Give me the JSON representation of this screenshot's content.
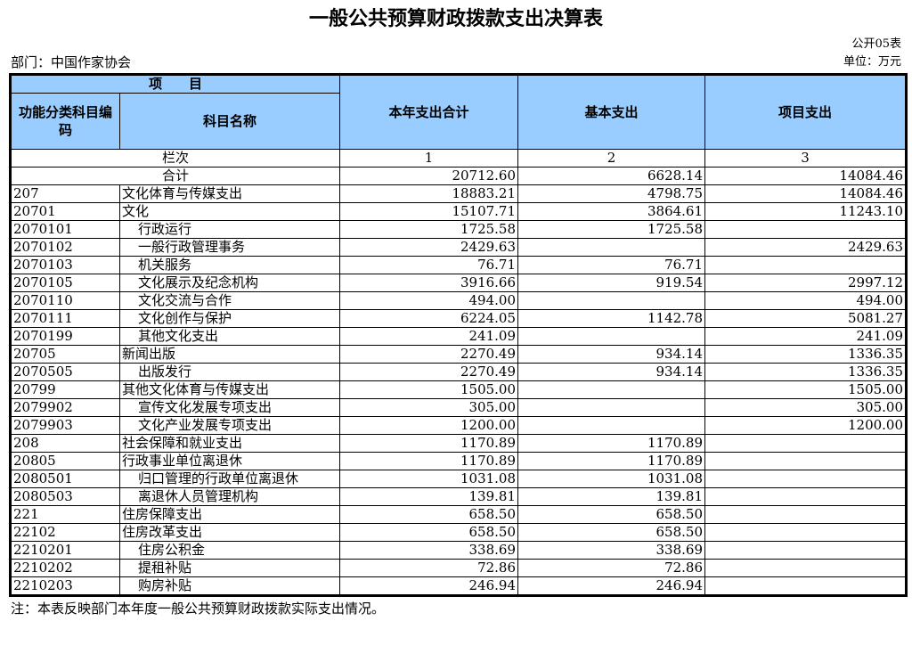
{
  "title": "一般公共预算财政拨款支出决算表",
  "form_no": "公开05表",
  "department": "部门：中国作家协会",
  "unit": "单位：万元",
  "header": {
    "item": "项　　目",
    "code": "功能分类科目编码",
    "name": "科目名称",
    "total": "本年支出合计",
    "basic": "基本支出",
    "project": "项目支出",
    "col_label": "栏次",
    "col_nums": [
      "1",
      "2",
      "3"
    ]
  },
  "total_row": {
    "label": "合计",
    "total": "20712.60",
    "basic": "6628.14",
    "project": "14084.46"
  },
  "rows": [
    {
      "code": "207",
      "name": "文化体育与传媒支出",
      "level": 1,
      "total": "18883.21",
      "basic": "4798.75",
      "project": "14084.46"
    },
    {
      "code": "20701",
      "name": "文化",
      "level": 1,
      "total": "15107.71",
      "basic": "3864.61",
      "project": "11243.10"
    },
    {
      "code": "2070101",
      "name": "行政运行",
      "level": 2,
      "total": "1725.58",
      "basic": "1725.58",
      "project": ""
    },
    {
      "code": "2070102",
      "name": "一般行政管理事务",
      "level": 2,
      "total": "2429.63",
      "basic": "",
      "project": "2429.63"
    },
    {
      "code": "2070103",
      "name": "机关服务",
      "level": 2,
      "total": "76.71",
      "basic": "76.71",
      "project": ""
    },
    {
      "code": "2070105",
      "name": "文化展示及纪念机构",
      "level": 2,
      "total": "3916.66",
      "basic": "919.54",
      "project": "2997.12"
    },
    {
      "code": "2070110",
      "name": "文化交流与合作",
      "level": 2,
      "total": "494.00",
      "basic": "",
      "project": "494.00"
    },
    {
      "code": "2070111",
      "name": "文化创作与保护",
      "level": 2,
      "total": "6224.05",
      "basic": "1142.78",
      "project": "5081.27"
    },
    {
      "code": "2070199",
      "name": "其他文化支出",
      "level": 2,
      "total": "241.09",
      "basic": "",
      "project": "241.09"
    },
    {
      "code": "20705",
      "name": "新闻出版",
      "level": 1,
      "total": "2270.49",
      "basic": "934.14",
      "project": "1336.35"
    },
    {
      "code": "2070505",
      "name": "出版发行",
      "level": 2,
      "total": "2270.49",
      "basic": "934.14",
      "project": "1336.35"
    },
    {
      "code": "20799",
      "name": "其他文化体育与传媒支出",
      "level": 1,
      "total": "1505.00",
      "basic": "",
      "project": "1505.00"
    },
    {
      "code": "2079902",
      "name": "宣传文化发展专项支出",
      "level": 2,
      "total": "305.00",
      "basic": "",
      "project": "305.00"
    },
    {
      "code": "2079903",
      "name": "文化产业发展专项支出",
      "level": 2,
      "total": "1200.00",
      "basic": "",
      "project": "1200.00"
    },
    {
      "code": "208",
      "name": "社会保障和就业支出",
      "level": 1,
      "total": "1170.89",
      "basic": "1170.89",
      "project": ""
    },
    {
      "code": "20805",
      "name": "行政事业单位离退休",
      "level": 1,
      "total": "1170.89",
      "basic": "1170.89",
      "project": ""
    },
    {
      "code": "2080501",
      "name": "归口管理的行政单位离退休",
      "level": 2,
      "total": "1031.08",
      "basic": "1031.08",
      "project": ""
    },
    {
      "code": "2080503",
      "name": "离退休人员管理机构",
      "level": 2,
      "total": "139.81",
      "basic": "139.81",
      "project": ""
    },
    {
      "code": "221",
      "name": "住房保障支出",
      "level": 1,
      "total": "658.50",
      "basic": "658.50",
      "project": ""
    },
    {
      "code": "22102",
      "name": "住房改革支出",
      "level": 1,
      "total": "658.50",
      "basic": "658.50",
      "project": ""
    },
    {
      "code": "2210201",
      "name": "住房公积金",
      "level": 2,
      "total": "338.69",
      "basic": "338.69",
      "project": ""
    },
    {
      "code": "2210202",
      "name": "提租补贴",
      "level": 2,
      "total": "72.86",
      "basic": "72.86",
      "project": ""
    },
    {
      "code": "2210203",
      "name": "购房补贴",
      "level": 2,
      "total": "246.94",
      "basic": "246.94",
      "project": ""
    }
  ],
  "note": "注：本表反映部门本年度一般公共预算财政拨款实际支出情况。",
  "colors": {
    "header_bg": "#99ccff"
  }
}
